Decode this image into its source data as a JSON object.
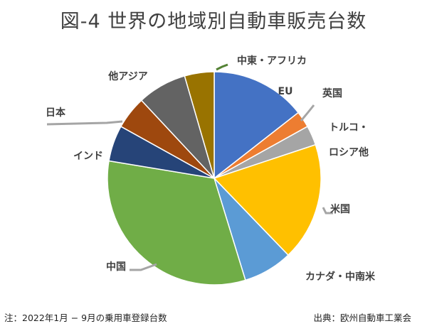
{
  "title": "図-4 世界の地域別自動車販売台数",
  "footnote": "注：2022年1月 − 9月の乗用車登録台数",
  "source": "出典：欧州自動車工業会",
  "chart_data": {
    "type": "pie",
    "title": "図-4 世界の地域別自動車販売台数",
    "start": "12 o'clock, clockwise",
    "slices": [
      {
        "label": "EU",
        "value": 14.5,
        "color": "#4472C4"
      },
      {
        "label": "英国",
        "value": 2.5,
        "color": "#ED7D31"
      },
      {
        "label": "トルコ・ロシア他",
        "value": 3.0,
        "color": "#A5A5A5"
      },
      {
        "label": "米国",
        "value": 18.0,
        "color": "#FFC000"
      },
      {
        "label": "カナダ・中南米",
        "value": 7.5,
        "color": "#5B9BD5"
      },
      {
        "label": "中国",
        "value": 32.5,
        "color": "#70AD47"
      },
      {
        "label": "インド",
        "value": 5.5,
        "color": "#264478"
      },
      {
        "label": "日本",
        "value": 5.0,
        "color": "#9E480E"
      },
      {
        "label": "他アジア",
        "value": 7.5,
        "color": "#636363"
      },
      {
        "label": "中東・アフリカ",
        "value": 4.5,
        "color": "#997300"
      }
    ]
  }
}
